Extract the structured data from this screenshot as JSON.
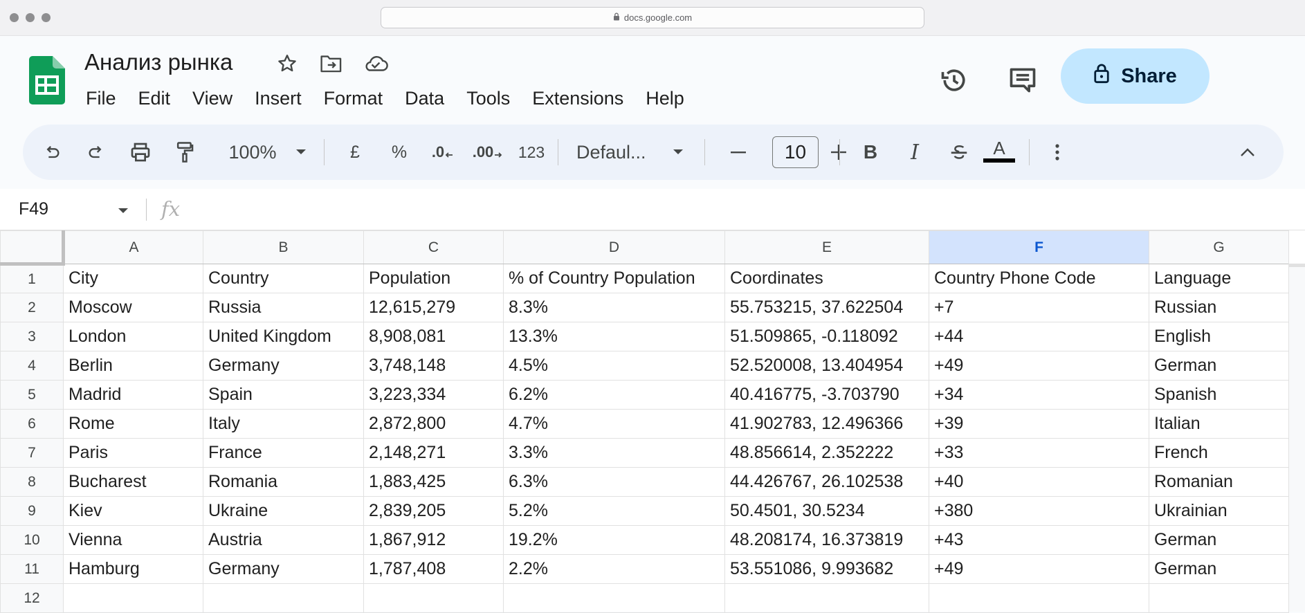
{
  "browser": {
    "url": "docs.google.com"
  },
  "doc": {
    "title": "Анализ рынка"
  },
  "menu": [
    "File",
    "Edit",
    "View",
    "Insert",
    "Format",
    "Data",
    "Tools",
    "Extensions",
    "Help"
  ],
  "share": {
    "label": "Share"
  },
  "toolbar": {
    "zoom": "100%",
    "currency": "£",
    "percent": "%",
    "decrease_decimal": ".0",
    "increase_decimal": ".00",
    "number_format": "123",
    "font": "Defaul...",
    "font_size": "10",
    "bold": "B",
    "italic": "I",
    "text_color_letter": "A"
  },
  "formula_bar": {
    "name_box": "F49",
    "fx": "fx",
    "value": ""
  },
  "colors": {
    "accent": "#0b57d0",
    "share_bg": "#c2e7ff",
    "sheets_green": "#0f9d58",
    "selected_header": "#d3e3fd"
  },
  "sheet": {
    "columns": [
      "A",
      "B",
      "C",
      "D",
      "E",
      "F",
      "G"
    ],
    "selected_column": "F",
    "rows": [
      {
        "n": "1",
        "cells": [
          "City",
          "Country",
          "Population",
          "% of Country Population",
          "Coordinates",
          "Country Phone Code",
          "Language"
        ]
      },
      {
        "n": "2",
        "cells": [
          "Moscow",
          "Russia",
          "12,615,279",
          "8.3%",
          "55.753215, 37.622504",
          "+7",
          "Russian"
        ]
      },
      {
        "n": "3",
        "cells": [
          "London",
          "United Kingdom",
          "8,908,081",
          "13.3%",
          "51.509865, -0.118092",
          "+44",
          "English"
        ]
      },
      {
        "n": "4",
        "cells": [
          "Berlin",
          "Germany",
          "3,748,148",
          "4.5%",
          "52.520008, 13.404954",
          "+49",
          "German"
        ]
      },
      {
        "n": "5",
        "cells": [
          "Madrid",
          "Spain",
          "3,223,334",
          "6.2%",
          "40.416775, -3.703790",
          "+34",
          "Spanish"
        ]
      },
      {
        "n": "6",
        "cells": [
          "Rome",
          "Italy",
          "2,872,800",
          "4.7%",
          "41.902783, 12.496366",
          "+39",
          "Italian"
        ]
      },
      {
        "n": "7",
        "cells": [
          "Paris",
          "France",
          "2,148,271",
          "3.3%",
          "48.856614, 2.352222",
          "+33",
          "French"
        ]
      },
      {
        "n": "8",
        "cells": [
          "Bucharest",
          "Romania",
          "1,883,425",
          "6.3%",
          "44.426767, 26.102538",
          "+40",
          "Romanian"
        ]
      },
      {
        "n": "9",
        "cells": [
          "Kiev",
          "Ukraine",
          "2,839,205",
          "5.2%",
          "50.4501, 30.5234",
          "+380",
          "Ukrainian"
        ]
      },
      {
        "n": "10",
        "cells": [
          "Vienna",
          "Austria",
          "1,867,912",
          "19.2%",
          "48.208174, 16.373819",
          "+43",
          "German"
        ]
      },
      {
        "n": "11",
        "cells": [
          "Hamburg",
          "Germany",
          "1,787,408",
          "2.2%",
          "53.551086, 9.993682",
          "+49",
          "German"
        ]
      },
      {
        "n": "12",
        "cells": [
          "",
          "",
          "",
          "",
          "",
          "",
          ""
        ]
      }
    ]
  }
}
